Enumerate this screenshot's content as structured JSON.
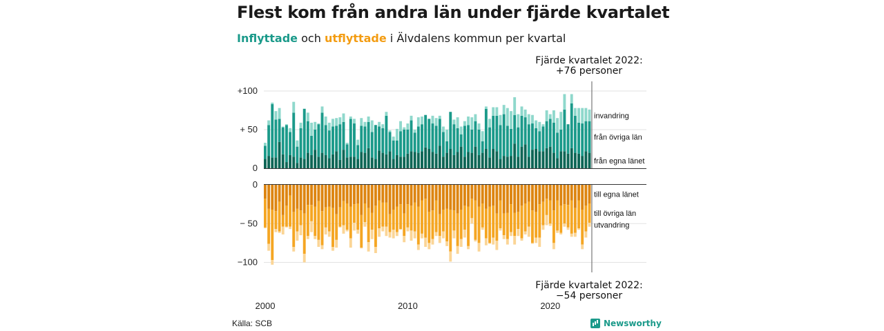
{
  "title": "Flest kom från andra län under fjärde kvartalet",
  "subtitle": {
    "in_word": "Inflyttade",
    "and_word": "och",
    "out_word": "utflyttade",
    "rest": "i Älvdalens kommun per kvartal"
  },
  "annotations": {
    "top_line1": "Fjärde kvartalet 2022:",
    "top_line2": "+76 personer",
    "bottom_line1": "Fjärde kvartalet 2022:",
    "bottom_line2": "−54 personer"
  },
  "source": "Källa: SCB",
  "brand": "Newsworthy",
  "colors": {
    "in_own": "#0e6656",
    "in_other": "#1b9a8a",
    "in_emig": "#8fd8cc",
    "out_own": "#dd8511",
    "out_other": "#f5a623",
    "out_emig": "#fbd596"
  },
  "chart_data": {
    "type": "bar",
    "stacked": true,
    "x_start": 2000.0,
    "x_step": 0.25,
    "quarters": 92,
    "x_ticks": [
      "2000",
      "2010",
      "2020"
    ],
    "upper": {
      "yticks": [
        "+100",
        "+ 50",
        "0"
      ],
      "ylim": [
        0,
        100
      ],
      "series": [
        {
          "name": "från egna länet",
          "values": [
            12,
            16,
            14,
            14,
            34,
            18,
            8,
            17,
            15,
            7,
            14,
            12,
            20,
            17,
            24,
            15,
            20,
            17,
            13,
            18,
            22,
            11,
            24,
            14,
            15,
            15,
            12,
            21,
            20,
            26,
            14,
            12,
            23,
            20,
            18,
            22,
            12,
            17,
            15,
            15,
            19,
            22,
            21,
            20,
            22,
            27,
            25,
            21,
            19,
            29,
            15,
            20,
            25,
            17,
            21,
            28,
            15,
            21,
            20,
            28,
            17,
            20,
            25,
            14,
            25,
            22,
            12,
            16,
            15,
            16,
            32,
            15,
            28,
            31,
            15,
            24,
            25,
            22,
            22,
            26,
            28,
            20,
            13,
            22,
            22,
            19,
            26,
            20,
            19,
            16,
            22,
            20
          ]
        },
        {
          "name": "från övriga län",
          "values": [
            17,
            40,
            69,
            49,
            30,
            35,
            48,
            30,
            57,
            21,
            38,
            65,
            41,
            25,
            26,
            42,
            52,
            39,
            36,
            36,
            33,
            46,
            36,
            17,
            49,
            43,
            18,
            34,
            34,
            34,
            33,
            44,
            31,
            32,
            50,
            25,
            24,
            19,
            33,
            35,
            31,
            40,
            25,
            34,
            35,
            42,
            39,
            37,
            36,
            35,
            32,
            15,
            48,
            40,
            31,
            16,
            40,
            35,
            30,
            33,
            33,
            15,
            52,
            39,
            43,
            46,
            44,
            54,
            40,
            35,
            37,
            38,
            40,
            35,
            42,
            34,
            27,
            26,
            32,
            35,
            36,
            39,
            33,
            28,
            54,
            38,
            58,
            48,
            40,
            42,
            39,
            41
          ]
        },
        {
          "name": "invandring",
          "values": [
            4,
            6,
            2,
            11,
            14,
            1,
            1,
            5,
            14,
            8,
            7,
            0,
            11,
            17,
            10,
            1,
            8,
            11,
            10,
            10,
            10,
            9,
            11,
            2,
            3,
            6,
            7,
            10,
            6,
            7,
            15,
            0,
            6,
            5,
            5,
            2,
            5,
            15,
            13,
            3,
            8,
            6,
            4,
            12,
            10,
            0,
            0,
            10,
            10,
            4,
            7,
            15,
            0,
            6,
            14,
            10,
            6,
            11,
            16,
            9,
            8,
            13,
            3,
            11,
            11,
            11,
            13,
            12,
            23,
            23,
            23,
            17,
            12,
            10,
            13,
            11,
            10,
            12,
            3,
            14,
            6,
            16,
            19,
            23,
            20,
            0,
            12,
            10,
            19,
            20,
            17,
            15
          ]
        }
      ]
    },
    "lower": {
      "yticks": [
        "0",
        "− 50",
        "−100"
      ],
      "ylim": [
        -110,
        0
      ],
      "series": [
        {
          "name": "till egna länet",
          "values": [
            -18,
            -31,
            -32,
            -34,
            -22,
            -39,
            -27,
            -14,
            -35,
            -31,
            -33,
            -37,
            -26,
            -26,
            -28,
            -21,
            -34,
            -29,
            -28,
            -30,
            -38,
            -29,
            -21,
            -24,
            -28,
            -25,
            -24,
            -39,
            -24,
            -30,
            -36,
            -27,
            -20,
            -23,
            -23,
            -38,
            -32,
            -28,
            -25,
            -37,
            -25,
            -27,
            -23,
            -28,
            -20,
            -18,
            -35,
            -33,
            -20,
            -38,
            -32,
            -31,
            -32,
            -33,
            -37,
            -32,
            -27,
            -28,
            -18,
            -20,
            -28,
            -24,
            -31,
            -28,
            -27,
            -37,
            -20,
            -37,
            -36,
            -25,
            -36,
            -35,
            -27,
            -24,
            -22,
            -33,
            -35,
            -25,
            -22,
            -18,
            -20,
            -33,
            -20,
            -27,
            -25,
            -26,
            -20,
            -30,
            -20,
            -32,
            -27,
            -24
          ]
        },
        {
          "name": "till övriga län",
          "values": [
            -37,
            -45,
            -65,
            -23,
            -38,
            -15,
            -27,
            -40,
            -45,
            -29,
            -19,
            -52,
            -40,
            -21,
            -38,
            -50,
            -44,
            -26,
            -32,
            -50,
            -33,
            -25,
            -31,
            -34,
            -41,
            -24,
            -34,
            -42,
            -24,
            -44,
            -22,
            -53,
            -36,
            -31,
            -31,
            -23,
            -26,
            -33,
            -32,
            -29,
            -30,
            -32,
            -37,
            -49,
            -43,
            -50,
            -40,
            -37,
            -41,
            -28,
            -28,
            -42,
            -54,
            -26,
            -42,
            -38,
            -31,
            -51,
            -25,
            -51,
            -47,
            -31,
            -38,
            -47,
            -41,
            -35,
            -36,
            -28,
            -34,
            -36,
            -30,
            -22,
            -42,
            -36,
            -32,
            -42,
            -33,
            -43,
            -30,
            -21,
            -30,
            -42,
            -39,
            -35,
            -25,
            -29,
            -43,
            -32,
            -36,
            -45,
            -33,
            -25
          ]
        },
        {
          "name": "utvandring",
          "values": [
            -1,
            -9,
            -6,
            -4,
            -2,
            -10,
            -1,
            -3,
            -6,
            -12,
            -13,
            -11,
            -4,
            -14,
            -4,
            -9,
            -5,
            -9,
            -7,
            -5,
            -10,
            -1,
            -11,
            -2,
            -12,
            -10,
            -5,
            -1,
            -6,
            -12,
            -12,
            -8,
            -11,
            -6,
            -12,
            -7,
            -11,
            -5,
            -1,
            -8,
            -5,
            -13,
            -9,
            -7,
            -6,
            -12,
            -8,
            -7,
            -5,
            -9,
            -9,
            -6,
            -13,
            -10,
            -10,
            -10,
            -10,
            -4,
            -7,
            -2,
            -11,
            -3,
            -9,
            -1,
            -9,
            -12,
            -3,
            -5,
            -7,
            -5,
            -11,
            -9,
            -3,
            -4,
            -13,
            -1,
            -7,
            -12,
            -6,
            -13,
            -3,
            -8,
            -3,
            -2,
            -4,
            -3,
            -4,
            -5,
            -2,
            -6,
            -8,
            -5
          ]
        }
      ]
    }
  }
}
